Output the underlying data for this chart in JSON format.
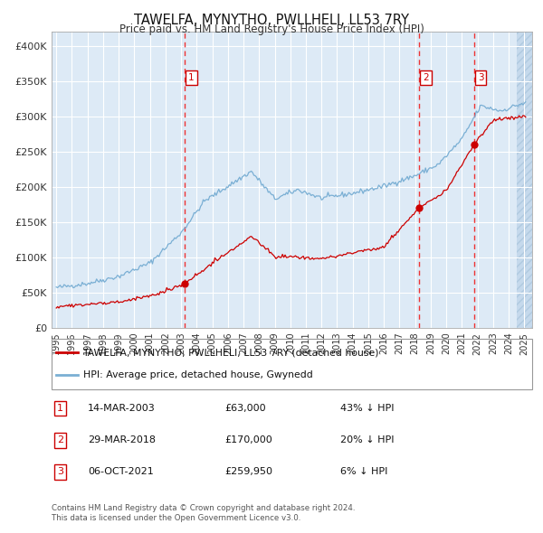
{
  "title": "TAWELFA, MYNYTHO, PWLLHELI, LL53 7RY",
  "subtitle": "Price paid vs. HM Land Registry's House Price Index (HPI)",
  "legend_label_red": "TAWELFA, MYNYTHO, PWLLHELI, LL53 7RY (detached house)",
  "legend_label_blue": "HPI: Average price, detached house, Gwynedd",
  "footer1": "Contains HM Land Registry data © Crown copyright and database right 2024.",
  "footer2": "This data is licensed under the Open Government Licence v3.0.",
  "transactions": [
    {
      "label": "1",
      "date": "14-MAR-2003",
      "price": 63000,
      "pct": "43%",
      "dir": "↓"
    },
    {
      "label": "2",
      "date": "29-MAR-2018",
      "price": 170000,
      "pct": "20%",
      "dir": "↓"
    },
    {
      "label": "3",
      "date": "06-OCT-2021",
      "price": 259950,
      "pct": "6%",
      "dir": "↓"
    }
  ],
  "transaction_dates_num": [
    2003.21,
    2018.24,
    2021.76
  ],
  "transaction_prices": [
    63000,
    170000,
    259950
  ],
  "ylim": [
    0,
    420000
  ],
  "xlim_start": 1994.7,
  "xlim_end": 2025.5,
  "bg_color": "#ddeaf6",
  "grid_color": "#ffffff",
  "red_line_color": "#cc0000",
  "blue_line_color": "#7aafd4",
  "vline_color": "#ee3333",
  "tick_label_color": "#333333",
  "ytick_values": [
    0,
    50000,
    100000,
    150000,
    200000,
    250000,
    300000,
    350000,
    400000
  ],
  "hpi_anchors_t": [
    1995.0,
    1997.0,
    1999.0,
    2001.0,
    2003.0,
    2004.5,
    2007.5,
    2009.0,
    2010.5,
    2012.0,
    2014.0,
    2016.0,
    2018.0,
    2019.5,
    2021.0,
    2022.2,
    2023.5,
    2024.8
  ],
  "hpi_anchors_v": [
    57000,
    63000,
    73000,
    92000,
    135000,
    180000,
    222000,
    183000,
    196000,
    184000,
    191000,
    201000,
    216000,
    232000,
    268000,
    315000,
    308000,
    318000
  ]
}
